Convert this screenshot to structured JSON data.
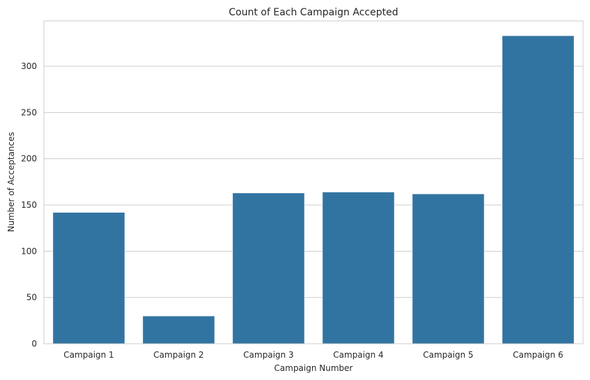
{
  "chart_data": {
    "type": "bar",
    "title": "Count of Each Campaign Accepted",
    "xlabel": "Campaign Number",
    "ylabel": "Number of Acceptances",
    "categories": [
      "Campaign 1",
      "Campaign 2",
      "Campaign 3",
      "Campaign 4",
      "Campaign 5",
      "Campaign 6"
    ],
    "values": [
      142,
      30,
      163,
      164,
      162,
      333
    ],
    "ylim": [
      0,
      349
    ],
    "yticks": [
      0,
      50,
      100,
      150,
      200,
      250,
      300
    ],
    "grid": "horizontal",
    "bar_color": "#3274a1",
    "grid_color": "#cccccc",
    "axes_edge_color": "#cccccc"
  }
}
